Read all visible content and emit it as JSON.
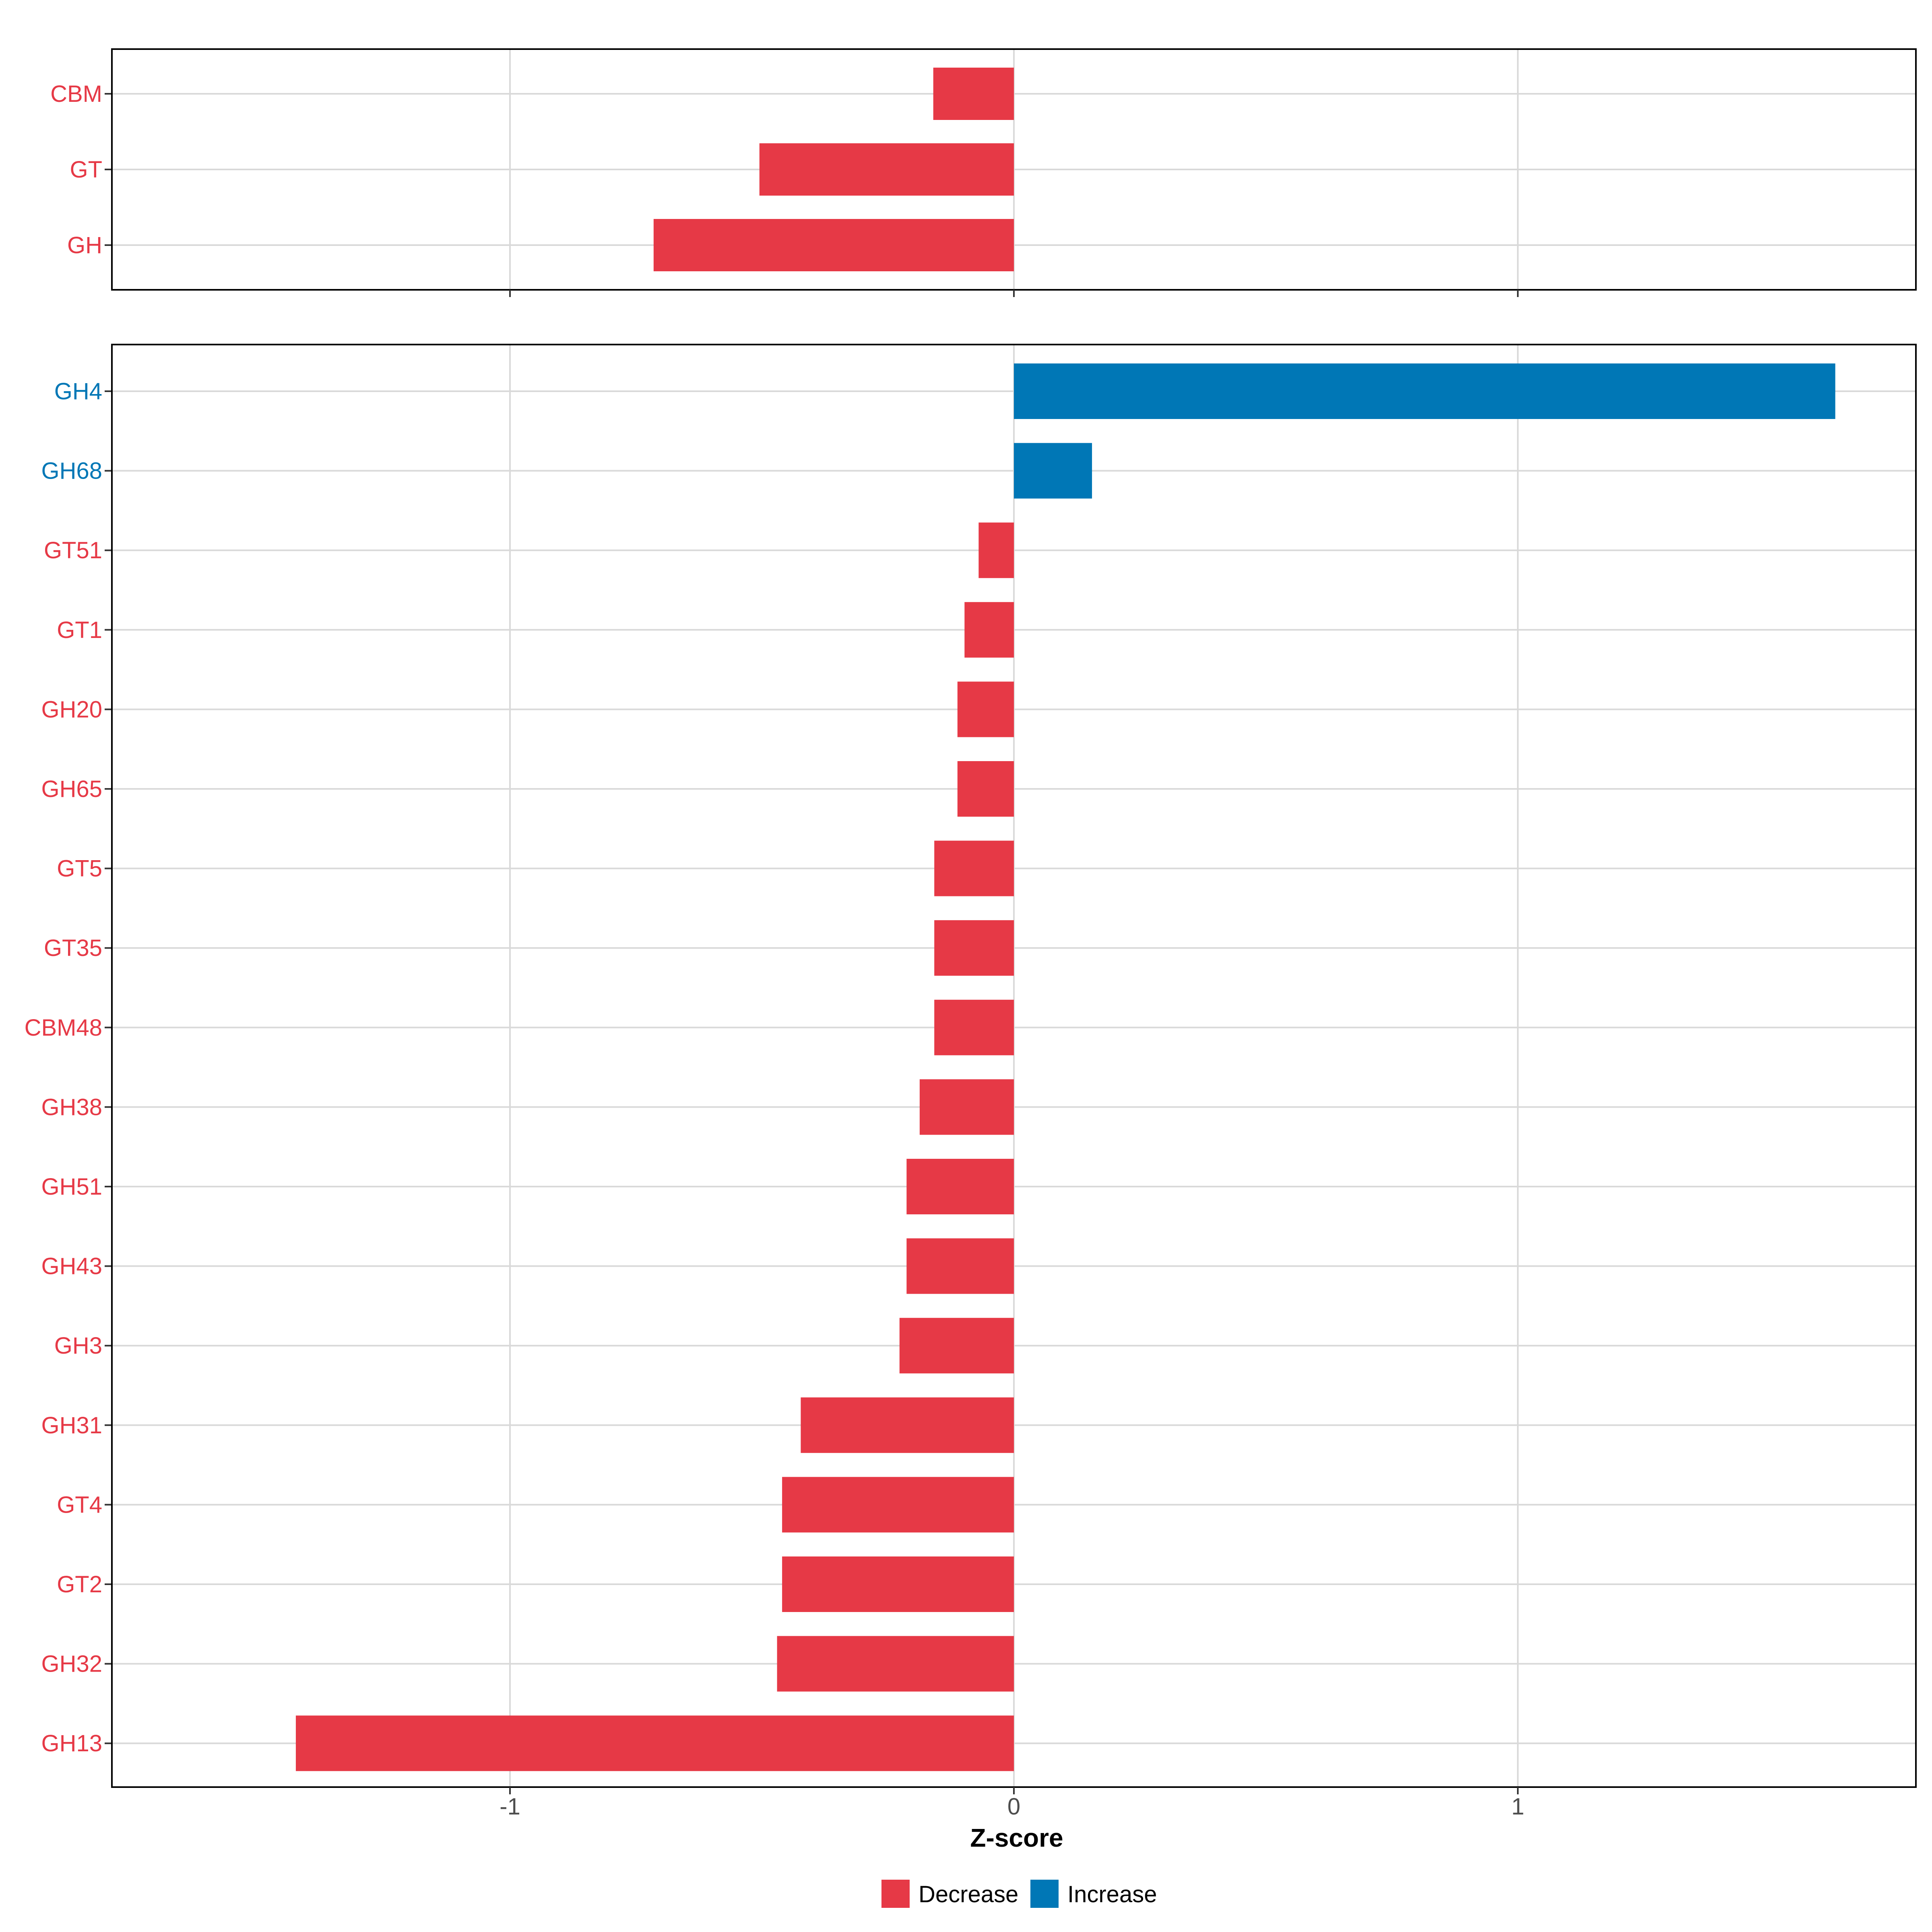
{
  "chart_data": [
    {
      "type": "bar",
      "orientation": "horizontal",
      "categories": [
        "CBM",
        "GT",
        "GH"
      ],
      "values": [
        -0.16,
        -0.505,
        -0.715
      ],
      "xlim": [
        -1.79,
        1.79
      ],
      "grid": true
    },
    {
      "type": "bar",
      "orientation": "horizontal",
      "categories": [
        "GH4",
        "GH68",
        "GT51",
        "GT1",
        "GH20",
        "GH65",
        "GT5",
        "GT35",
        "CBM48",
        "GH38",
        "GH51",
        "GH43",
        "GH3",
        "GH31",
        "GT4",
        "GT2",
        "GH32",
        "GH13"
      ],
      "values": [
        1.63,
        0.155,
        -0.07,
        -0.098,
        -0.112,
        -0.112,
        -0.158,
        -0.158,
        -0.158,
        -0.187,
        -0.213,
        -0.213,
        -0.227,
        -0.423,
        -0.46,
        -0.46,
        -0.47,
        -1.425
      ],
      "xlim": [
        -1.79,
        1.79
      ],
      "xticks": [
        "-1",
        "0",
        "1"
      ],
      "xtick_values": [
        -1,
        0,
        1
      ],
      "xlabel": "Z-score",
      "grid": true
    }
  ],
  "legend": {
    "position": "bottom",
    "items": [
      {
        "label": "Decrease",
        "color": "#e63946"
      },
      {
        "label": "Increase",
        "color": "#0077b6"
      }
    ]
  },
  "colors": {
    "decrease": "#e63946",
    "increase": "#0077b6",
    "grid": "#d9d9d9",
    "axis": "#000000",
    "tick_label": "#4d4d4d"
  }
}
